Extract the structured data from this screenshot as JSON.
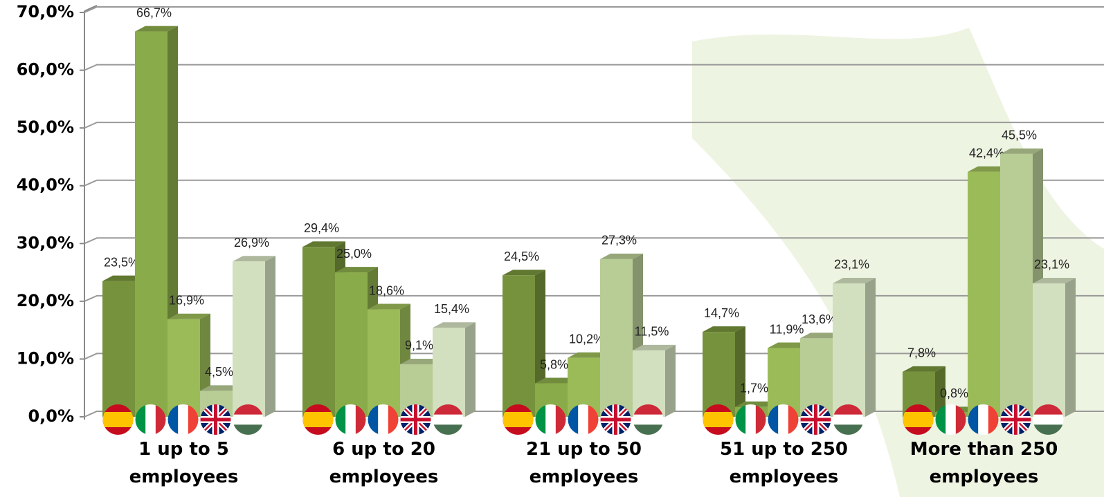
{
  "chart_data": {
    "type": "bar3d",
    "categories": [
      "1 up to 5 employees",
      "6 up to 20 employees",
      "21 up to 50 employees",
      "51 up to 250 employees",
      "More than 250 employees"
    ],
    "series": [
      {
        "color": "#76923c",
        "values": [
          23.5,
          29.4,
          24.5,
          14.7,
          7.8
        ],
        "value_labels": [
          "23,5%",
          "29,4%",
          "24,5%",
          "14,7%",
          "7,8%"
        ]
      },
      {
        "color": "#8aab4a",
        "values": [
          66.7,
          25.0,
          5.8,
          1.7,
          0.8
        ],
        "value_labels": [
          "66,7%",
          "25,0%",
          "5,8%",
          "1,7%",
          "0,8%"
        ]
      },
      {
        "color": "#9bbb59",
        "values": [
          16.9,
          18.6,
          10.2,
          11.9,
          42.4
        ],
        "value_labels": [
          "16,9%",
          "18,6%",
          "10,2%",
          "11,9%",
          "42,4%"
        ]
      },
      {
        "color": "#b8cc95",
        "values": [
          4.5,
          9.1,
          27.3,
          13.6,
          45.5
        ],
        "value_labels": [
          "4,5%",
          "9,1%",
          "27,3%",
          "13,6%",
          "45,5%"
        ]
      },
      {
        "color": "#d3e0bf",
        "values": [
          26.9,
          15.4,
          11.5,
          23.1,
          23.1
        ],
        "value_labels": [
          "26,9%",
          "15,4%",
          "11,5%",
          "23,1%",
          "23,1%"
        ]
      }
    ],
    "ylim": [
      0,
      70
    ],
    "yticks": [
      {
        "value": 0,
        "label": "0,0%"
      },
      {
        "value": 10,
        "label": "10,0%"
      },
      {
        "value": 20,
        "label": "20,0%"
      },
      {
        "value": 30,
        "label": "30,0%"
      },
      {
        "value": 40,
        "label": "40,0%"
      },
      {
        "value": 50,
        "label": "50,0%"
      },
      {
        "value": 60,
        "label": "60,0%"
      },
      {
        "value": 70,
        "label": "70,0%"
      }
    ],
    "grid": true
  }
}
